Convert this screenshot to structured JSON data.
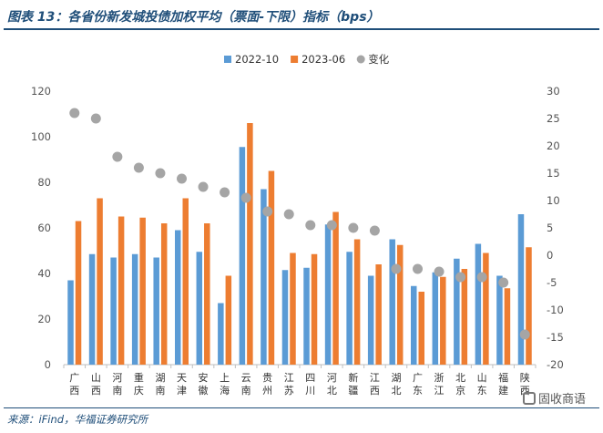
{
  "figure": {
    "title": "图表 13：各省份新发城投债加权平均（票面-下限）指标（bps）",
    "source": "来源：iFind，华福证券研究所",
    "watermark": "固收商语"
  },
  "chart_data": {
    "type": "bar",
    "categories": [
      "广西",
      "山西",
      "河南",
      "重庆",
      "湖南",
      "天津",
      "安徽",
      "上海",
      "云南",
      "贵州",
      "江苏",
      "四川",
      "河北",
      "新疆",
      "江西",
      "湖北",
      "广东",
      "浙江",
      "北京",
      "山东",
      "福建",
      "陕西"
    ],
    "series": [
      {
        "name": "2022-10",
        "kind": "bar",
        "axis": "left",
        "color": "#5b9bd5",
        "values": [
          37,
          48.5,
          47,
          48.5,
          47,
          59,
          49.5,
          27,
          95.5,
          77,
          41.5,
          42.5,
          61.5,
          49.5,
          39,
          55,
          34.5,
          40.5,
          46.5,
          53,
          39,
          66
        ]
      },
      {
        "name": "2023-06",
        "kind": "bar",
        "axis": "left",
        "color": "#ed7d31",
        "values": [
          63,
          73,
          65,
          64.5,
          62,
          73,
          62,
          39,
          106,
          85,
          49,
          48.5,
          67,
          55,
          44,
          52.5,
          32,
          38.5,
          42,
          49,
          33.5,
          51.5
        ]
      },
      {
        "name": "变化",
        "kind": "scatter",
        "axis": "right",
        "color": "#a5a5a5",
        "values": [
          26,
          25,
          18,
          16,
          15,
          14,
          12.5,
          11.5,
          10.5,
          8,
          7.5,
          5.5,
          5.5,
          5,
          4.5,
          -2.5,
          -2.5,
          -3,
          -4,
          -4,
          -5,
          -14.5
        ]
      }
    ],
    "left_axis": {
      "ylim": [
        0,
        120
      ],
      "ticks": [
        0,
        20,
        40,
        60,
        80,
        100,
        120
      ]
    },
    "right_axis": {
      "ylim": [
        -20,
        30
      ],
      "ticks": [
        -20,
        -15,
        -10,
        -5,
        0,
        5,
        10,
        15,
        20,
        25,
        30
      ]
    },
    "legend_position": "top-center",
    "grid": false
  }
}
